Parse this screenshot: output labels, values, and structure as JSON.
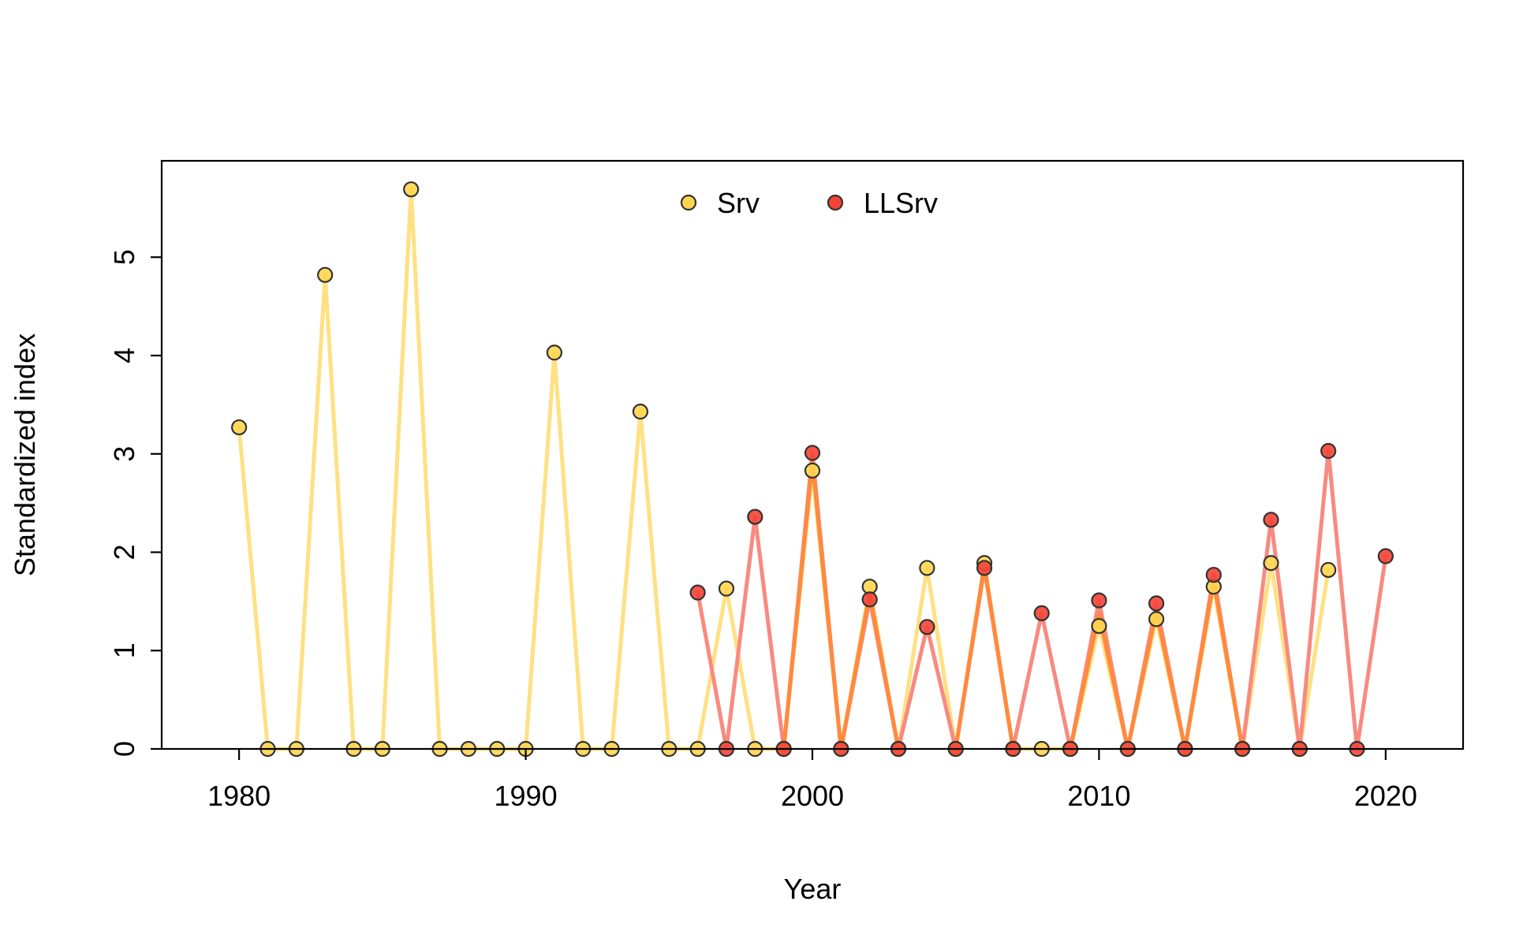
{
  "chart_data": {
    "type": "line",
    "xlabel": "Year",
    "ylabel": "Standardized index",
    "xlim": [
      1977.3,
      2022.7
    ],
    "ylim": [
      0,
      5.98
    ],
    "x_ticks": [
      1980,
      1990,
      2000,
      2010,
      2020
    ],
    "y_ticks": [
      0,
      1,
      2,
      3,
      4,
      5
    ],
    "legend_position": "top-center",
    "grid": false,
    "series": [
      {
        "name": "Srv",
        "line_color": "#FFE082",
        "point_color": "#FFD54F",
        "x": [
          1980,
          1981,
          1982,
          1983,
          1984,
          1985,
          1986,
          1987,
          1988,
          1989,
          1990,
          1991,
          1992,
          1993,
          1994,
          1995,
          1996,
          1997,
          1998,
          1999,
          2000,
          2001,
          2002,
          2003,
          2004,
          2005,
          2006,
          2007,
          2008,
          2009,
          2010,
          2011,
          2012,
          2013,
          2014,
          2015,
          2016,
          2017,
          2018
        ],
        "y": [
          3.27,
          0,
          0,
          4.82,
          0,
          0,
          5.69,
          0,
          0,
          0,
          0,
          4.03,
          0,
          0,
          3.43,
          0,
          0,
          1.63,
          0,
          0,
          2.83,
          0,
          1.65,
          0,
          1.84,
          0,
          1.89,
          0,
          0,
          0,
          1.25,
          0,
          1.32,
          0,
          1.65,
          0,
          1.89,
          0,
          1.82
        ]
      },
      {
        "name": "LLSrv",
        "line_color": "#F88A80",
        "point_color": "#F44336",
        "x": [
          1996,
          1997,
          1998,
          1999,
          2000,
          2001,
          2002,
          2003,
          2004,
          2005,
          2006,
          2007,
          2008,
          2009,
          2010,
          2011,
          2012,
          2013,
          2014,
          2015,
          2016,
          2017,
          2018,
          2019,
          2020
        ],
        "y": [
          1.59,
          0,
          2.36,
          0,
          3.01,
          0,
          1.52,
          0,
          1.24,
          0,
          1.84,
          0,
          1.38,
          0,
          1.51,
          0,
          1.48,
          0,
          1.77,
          0,
          2.33,
          0,
          3.03,
          0,
          1.96
        ]
      }
    ]
  }
}
